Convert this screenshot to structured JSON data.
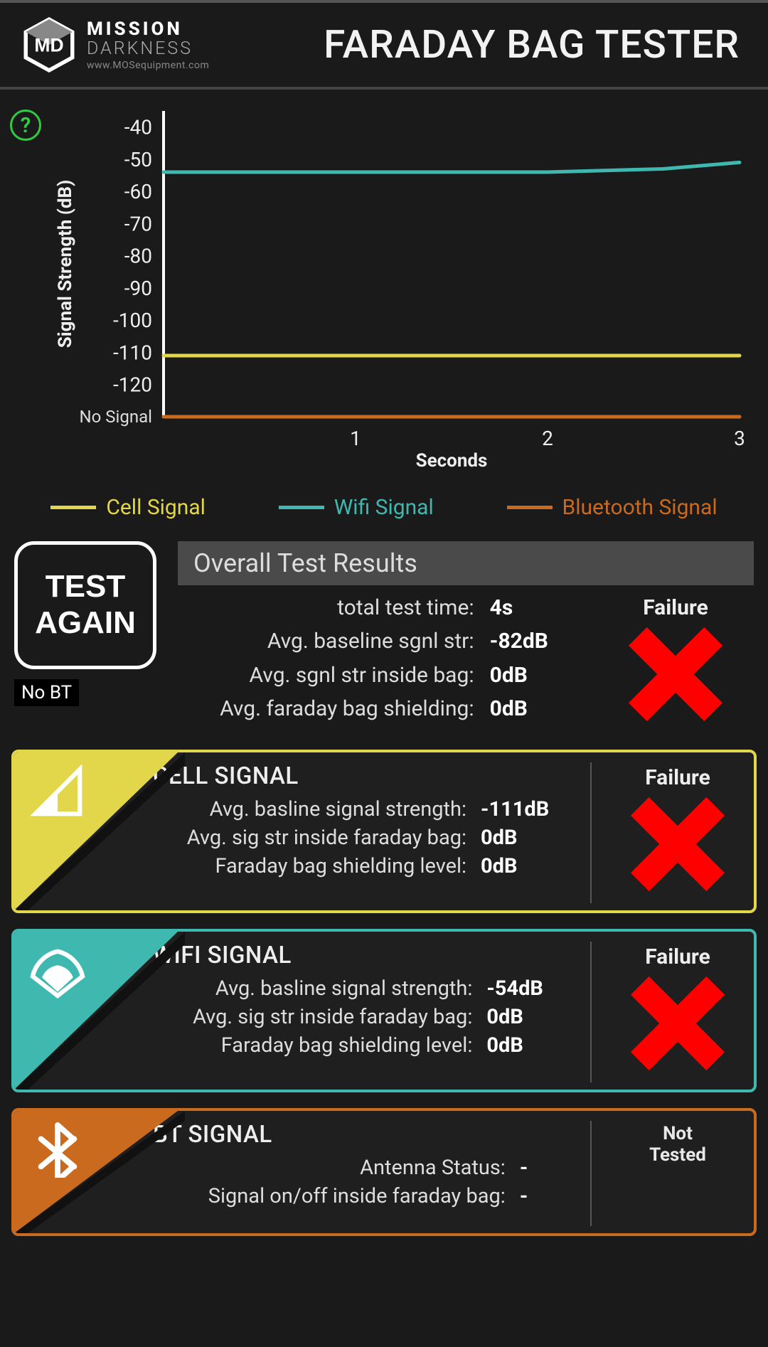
{
  "header": {
    "brand_line1": "MISSION",
    "brand_line2": "DARKNESS",
    "brand_url": "www.MOSequipment.com",
    "app_title": "FARADAY BAG TESTER"
  },
  "help_icon_glyph": "?",
  "chart": {
    "type": "line",
    "y_label": "Signal Strength (dB)",
    "x_label": "Seconds",
    "y_min": -130,
    "y_max": -35,
    "y_ticks": [
      -40,
      -50,
      -60,
      -70,
      -80,
      -90,
      -100,
      -110,
      -120
    ],
    "no_signal_label": "No Signal",
    "no_signal_y": -130,
    "x_min": 0,
    "x_max": 3,
    "x_ticks": [
      1,
      2,
      3
    ],
    "axis_color": "#ffffff",
    "tick_color": "#eeeeee",
    "background_color": "#1a1a1a",
    "line_width": 5,
    "series": [
      {
        "name": "Cell Signal",
        "color": "#e2d74a",
        "points": [
          [
            0,
            -111
          ],
          [
            1,
            -111
          ],
          [
            2,
            -111
          ],
          [
            3,
            -111
          ]
        ]
      },
      {
        "name": "Wifi Signal",
        "color": "#3fb8af",
        "points": [
          [
            0,
            -54
          ],
          [
            1,
            -54
          ],
          [
            2,
            -54
          ],
          [
            2.6,
            -53
          ],
          [
            3,
            -51
          ]
        ]
      },
      {
        "name": "Bluetooth Signal",
        "color": "#c96a1f",
        "points": [
          [
            0,
            -130
          ],
          [
            1,
            -130
          ],
          [
            2,
            -130
          ],
          [
            3,
            -130
          ]
        ]
      }
    ]
  },
  "legend": [
    {
      "label": "Cell Signal",
      "color": "#e2d74a"
    },
    {
      "label": "Wifi Signal",
      "color": "#3fb8af"
    },
    {
      "label": "Bluetooth Signal",
      "color": "#c96a1f"
    }
  ],
  "controls": {
    "test_again_label": "TEST\nAGAIN",
    "no_bt_label": "No BT"
  },
  "overall": {
    "header": "Overall Test Results",
    "status_label": "Failure",
    "status": "fail",
    "rows": [
      {
        "k": "total test time:",
        "v": "4s"
      },
      {
        "k": "Avg. baseline sgnl str:",
        "v": "-82dB"
      },
      {
        "k": "Avg. sgnl str inside bag:",
        "v": "0dB"
      },
      {
        "k": "Avg. faraday bag shielding:",
        "v": "0dB"
      }
    ]
  },
  "cards": [
    {
      "id": "cell",
      "title": "CELL SIGNAL",
      "color": "#e2d74a",
      "icon": "cell-icon",
      "status": "fail",
      "status_label": "Failure",
      "rows": [
        {
          "k": "Avg. basline signal strength:",
          "v": "-111dB"
        },
        {
          "k": "Avg. sig str inside faraday bag:",
          "v": "0dB"
        },
        {
          "k": "Faraday bag shielding level:",
          "v": "0dB"
        }
      ]
    },
    {
      "id": "wifi",
      "title": "WIFI SIGNAL",
      "color": "#3fb8af",
      "icon": "wifi-icon",
      "status": "fail",
      "status_label": "Failure",
      "rows": [
        {
          "k": "Avg. basline signal strength:",
          "v": "-54dB"
        },
        {
          "k": "Avg. sig str inside faraday bag:",
          "v": "0dB"
        },
        {
          "k": "Faraday bag shielding level:",
          "v": "0dB"
        }
      ]
    },
    {
      "id": "bt",
      "title": "BT SIGNAL",
      "color": "#c96a1f",
      "icon": "bluetooth-icon",
      "status": "not-tested",
      "status_label": "Not\nTested",
      "partial": true,
      "rows": [
        {
          "k": "Antenna Status:",
          "v": "-"
        },
        {
          "k": "Signal on/off inside faraday bag:",
          "v": "-"
        }
      ]
    }
  ],
  "colors": {
    "fail_red": "#ff1a1a",
    "help_green": "#2ecc40",
    "bg": "#1a1a1a",
    "card_bg": "#1f1f1f",
    "axis": "#ffffff"
  }
}
